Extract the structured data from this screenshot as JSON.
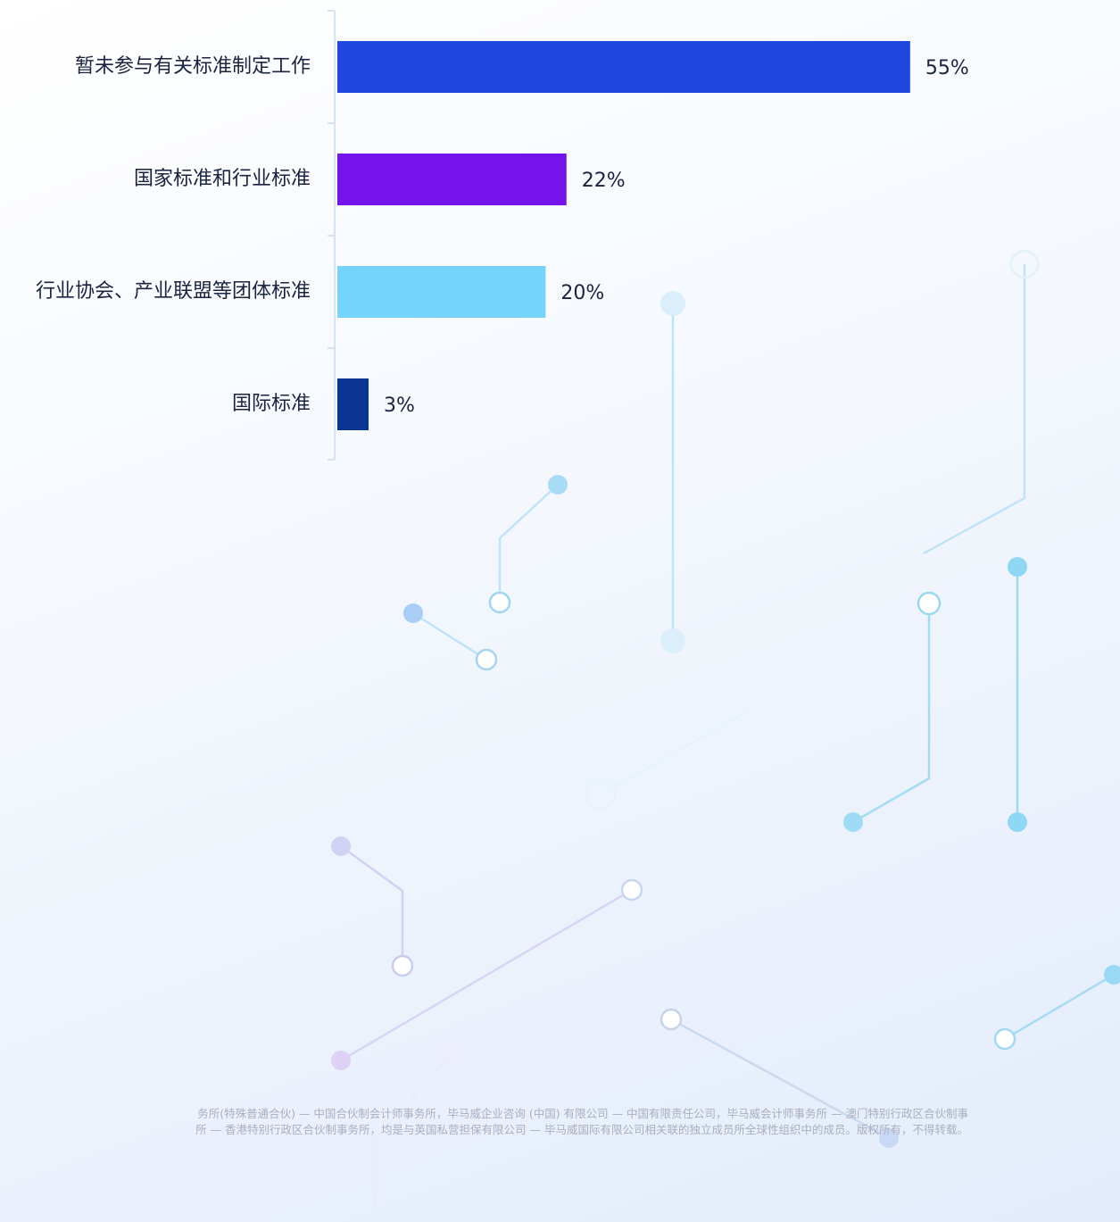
{
  "chart_data": {
    "type": "bar",
    "orientation": "horizontal",
    "categories": [
      "暂未参与有关标准制定工作",
      "国家标准和行业标准",
      "行业协会、产业联盟等团体标准",
      "国际标准"
    ],
    "values": [
      55,
      22,
      20,
      3
    ],
    "value_labels": [
      "55%",
      "22%",
      "20%",
      "3%"
    ],
    "colors": [
      "#1f47e0",
      "#7414ea",
      "#76d3fc",
      "#0a3592"
    ],
    "annotations": [
      "务所(特殊普通合伙) — 中国合伙制会计师事务所，毕马威企业咨询 (中国) 有限公司 — 中国有限责任公司，毕马威会计师事务所 — 澳门特别行政区合伙制事",
      "所 — 香港特别行政区合伙制事务所，均是与英国私营担保有限公司 — 毕马威国际有限公司相关联的独立成员所全球性组织中的成员。版权所有，不得转载。"
    ]
  }
}
